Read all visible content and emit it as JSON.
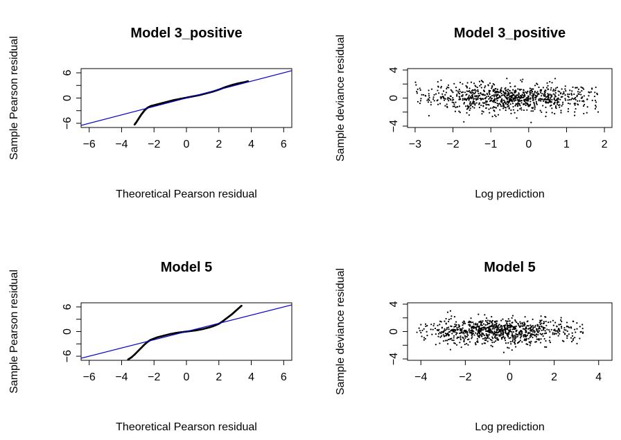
{
  "chart_data": [
    {
      "type": "scatter",
      "title": "Model 3_positive",
      "xlabel": "Theoretical Pearson residual",
      "ylabel": "Sample Pearson residual",
      "xlim": [
        -6.5,
        6.5
      ],
      "ylim": [
        -7,
        7
      ],
      "xticks": [
        -6,
        -4,
        -2,
        0,
        2,
        4,
        6
      ],
      "yticks": [
        -6,
        0,
        6
      ],
      "tick_labels_x": [
        "−6",
        "−4",
        "−2",
        "0",
        "2",
        "4",
        "6"
      ],
      "tick_labels_y": [
        "−6",
        "0",
        "6"
      ],
      "reference_line": {
        "color": "#0000cc",
        "points": [
          [
            -7,
            -7
          ],
          [
            7,
            7
          ]
        ]
      },
      "series": [
        {
          "kind": "qq-curve",
          "color": "#000000",
          "x": [
            -3.2,
            -3.1,
            -3.0,
            -2.9,
            -2.8,
            -2.7,
            -2.6,
            -2.5,
            -2.4,
            -2.3,
            -2.2,
            -2.0,
            -1.8,
            -1.6,
            -1.4,
            -1.2,
            -1.0,
            -0.8,
            -0.6,
            -0.4,
            -0.2,
            0.0,
            0.2,
            0.4,
            0.6,
            0.8,
            1.0,
            1.2,
            1.4,
            1.6,
            1.8,
            2.0,
            2.2,
            2.4,
            2.6,
            2.8,
            3.0,
            3.2,
            3.4,
            3.6,
            3.8
          ],
          "y": [
            -6.3,
            -5.8,
            -5.2,
            -4.6,
            -4.0,
            -3.5,
            -3.0,
            -2.6,
            -2.3,
            -2.1,
            -1.9,
            -1.7,
            -1.5,
            -1.3,
            -1.1,
            -0.9,
            -0.7,
            -0.5,
            -0.35,
            -0.2,
            -0.05,
            0.1,
            0.25,
            0.4,
            0.55,
            0.7,
            0.9,
            1.1,
            1.3,
            1.5,
            1.75,
            2.0,
            2.3,
            2.6,
            2.85,
            3.1,
            3.3,
            3.5,
            3.65,
            3.8,
            4.0
          ]
        }
      ]
    },
    {
      "type": "scatter",
      "title": "Model 3_positive",
      "xlabel": "Log prediction",
      "ylabel": "Sample deviance residual",
      "xlim": [
        -3.2,
        2.2
      ],
      "ylim": [
        -4.2,
        4.2
      ],
      "xticks": [
        -3,
        -2,
        -1,
        0,
        1,
        2
      ],
      "yticks": [
        -4,
        0,
        4
      ],
      "tick_labels_x": [
        "−3",
        "−2",
        "−1",
        "0",
        "1",
        "2"
      ],
      "tick_labels_y": [
        "−4",
        "0",
        "4"
      ],
      "series": [
        {
          "kind": "point-cloud",
          "color": "#000000",
          "x_range": [
            -3.0,
            1.95
          ],
          "center_x": -0.5,
          "spread_y": 1.0,
          "y_range": [
            -3.8,
            2.8
          ]
        }
      ]
    },
    {
      "type": "scatter",
      "title": "Model 5",
      "xlabel": "Theoretical Pearson residual",
      "ylabel": "Sample Pearson residual",
      "xlim": [
        -6.5,
        6.5
      ],
      "ylim": [
        -7,
        7
      ],
      "xticks": [
        -6,
        -4,
        -2,
        0,
        2,
        4,
        6
      ],
      "yticks": [
        -6,
        0,
        6
      ],
      "tick_labels_x": [
        "−6",
        "−4",
        "−2",
        "0",
        "2",
        "4",
        "6"
      ],
      "tick_labels_y": [
        "−6",
        "0",
        "6"
      ],
      "reference_line": {
        "color": "#0000cc",
        "points": [
          [
            -7,
            -7
          ],
          [
            7,
            7
          ]
        ]
      },
      "series": [
        {
          "kind": "qq-curve",
          "color": "#000000",
          "x": [
            -3.6,
            -3.4,
            -3.2,
            -3.0,
            -2.8,
            -2.6,
            -2.4,
            -2.2,
            -2.0,
            -1.8,
            -1.6,
            -1.4,
            -1.2,
            -1.0,
            -0.8,
            -0.6,
            -0.4,
            -0.2,
            0.0,
            0.2,
            0.4,
            0.6,
            0.8,
            1.0,
            1.2,
            1.4,
            1.6,
            1.8,
            2.0,
            2.2,
            2.4,
            2.6,
            2.8,
            3.0,
            3.2,
            3.4
          ],
          "y": [
            -6.8,
            -6.3,
            -5.6,
            -4.8,
            -4.0,
            -3.2,
            -2.5,
            -2.0,
            -1.7,
            -1.4,
            -1.2,
            -1.0,
            -0.8,
            -0.6,
            -0.45,
            -0.3,
            -0.2,
            -0.1,
            0.0,
            0.1,
            0.2,
            0.3,
            0.45,
            0.6,
            0.8,
            1.0,
            1.25,
            1.55,
            1.9,
            2.4,
            3.0,
            3.6,
            4.2,
            4.9,
            5.6,
            6.3
          ]
        }
      ]
    },
    {
      "type": "scatter",
      "title": "Model 5",
      "xlabel": "Log prediction",
      "ylabel": "Sample deviance residual",
      "xlim": [
        -4.6,
        4.6
      ],
      "ylim": [
        -4.2,
        4.2
      ],
      "xticks": [
        -4,
        -2,
        0,
        2,
        4
      ],
      "yticks": [
        -4,
        0,
        4
      ],
      "tick_labels_x": [
        "−4",
        "−2",
        "0",
        "2",
        "4"
      ],
      "tick_labels_y": [
        "−4",
        "0",
        "4"
      ],
      "series": [
        {
          "kind": "point-cloud",
          "color": "#000000",
          "x_range": [
            -4.2,
            3.3
          ],
          "center_x": -0.4,
          "spread_y": 0.9,
          "y_range": [
            -3.8,
            4.0
          ]
        }
      ]
    }
  ]
}
